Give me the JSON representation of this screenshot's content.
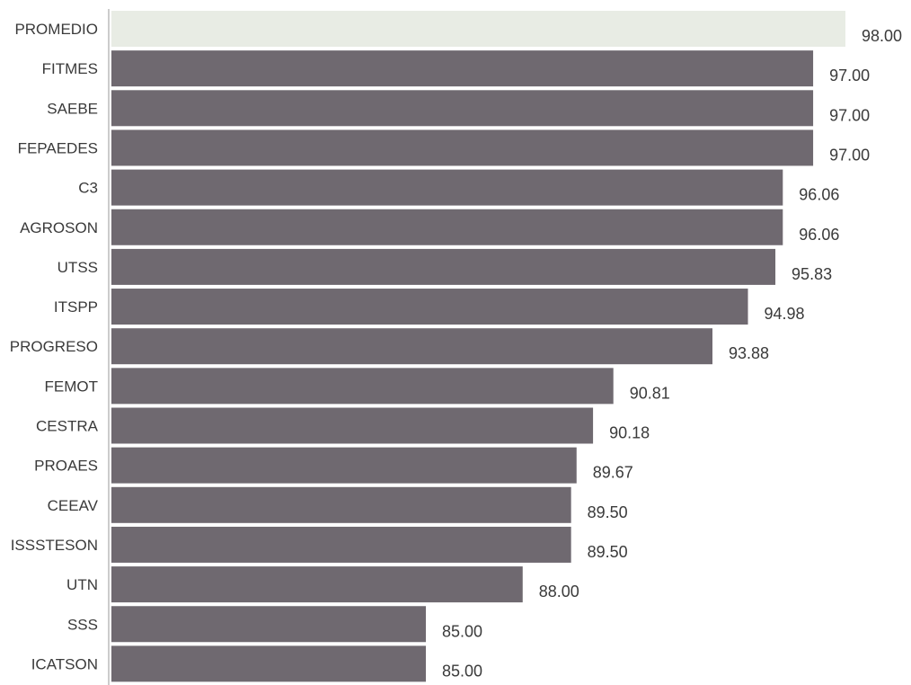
{
  "chart_data": {
    "type": "bar",
    "orientation": "horizontal",
    "categories": [
      "PROMEDIO",
      "FITMES",
      "SAEBE",
      "FEPAEDES",
      "C3",
      "AGROSON",
      "UTSS",
      "ITSPP",
      "PROGRESO",
      "FEMOT",
      "CESTRA",
      "PROAES",
      "CEEAV",
      "ISSSTESON",
      "UTN",
      "SSS",
      "ICATSON"
    ],
    "values": [
      98.0,
      97.0,
      97.0,
      97.0,
      96.06,
      96.06,
      95.83,
      94.98,
      93.88,
      90.81,
      90.18,
      89.67,
      89.5,
      89.5,
      88.0,
      85.0,
      85.0
    ],
    "value_labels": [
      "98.00",
      "97.00",
      "97.00",
      "97.00",
      "96.06",
      "96.06",
      "95.83",
      "94.98",
      "93.88",
      "90.81",
      "90.18",
      "89.67",
      "89.50",
      "89.50",
      "88.00",
      "85.00",
      "85.00"
    ],
    "title": "",
    "xlabel": "",
    "ylabel": "",
    "grid": false,
    "legend": "none",
    "colors": {
      "bar": "#6f6970",
      "highlight_bar": "#e8ece4",
      "text": "#3a3a3a",
      "axis": "#9a9a9a"
    }
  }
}
